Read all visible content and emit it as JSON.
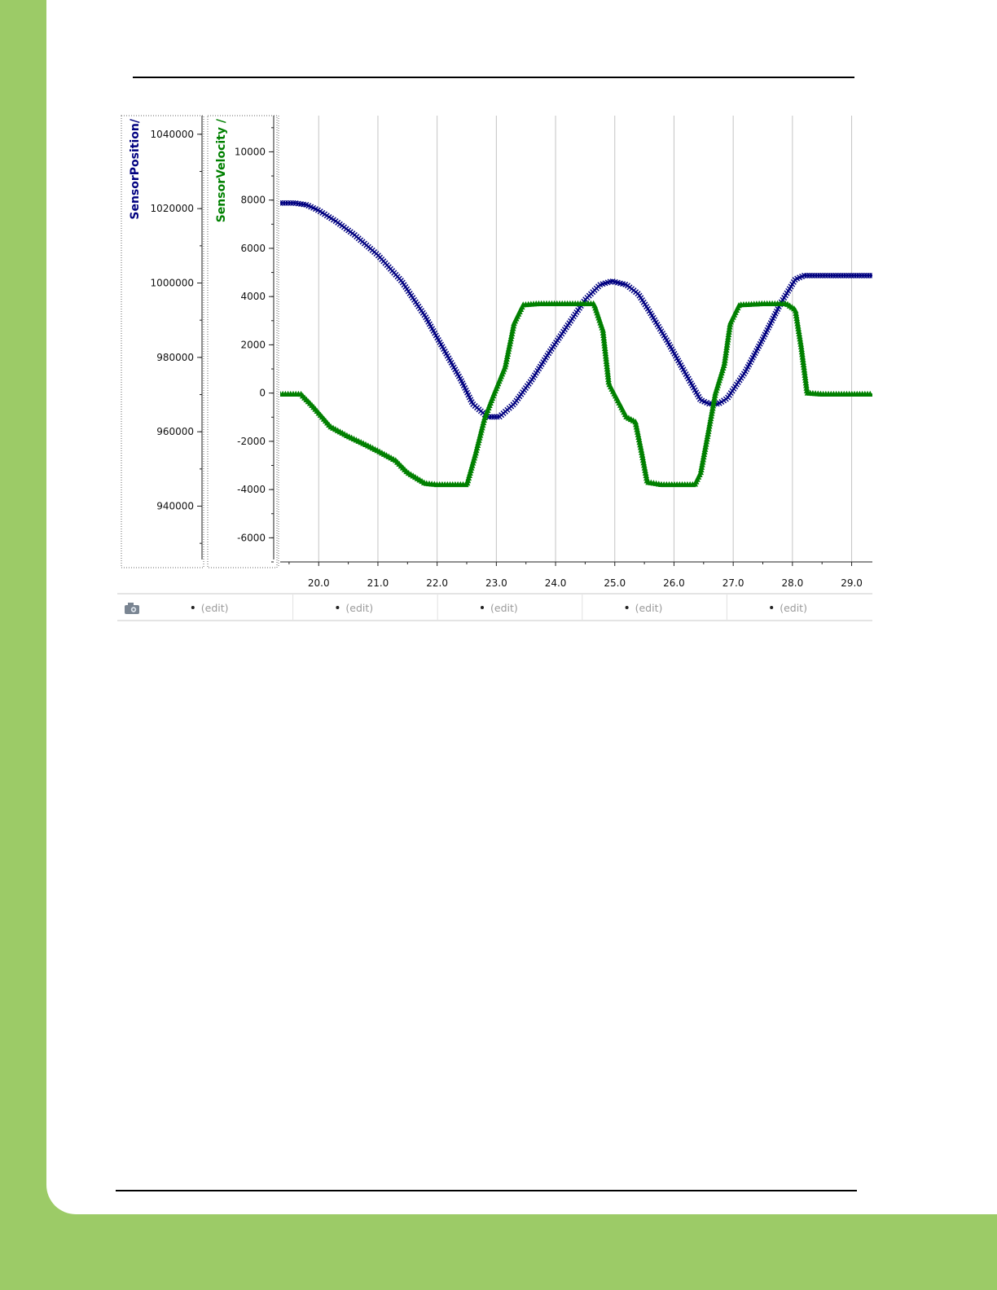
{
  "chart_data": {
    "type": "line",
    "xlim": [
      19.35,
      29.35
    ],
    "x_ticks": [
      "20.0",
      "21.0",
      "22.0",
      "23.0",
      "24.0",
      "25.0",
      "26.0",
      "27.0",
      "28.0",
      "29.0"
    ],
    "axes": [
      {
        "label": "SensorPosition/",
        "color": "#000080",
        "ylim": [
          925000,
          1045000
        ],
        "ticks": [
          "1040000",
          "1020000",
          "1000000",
          "980000",
          "960000",
          "940000"
        ]
      },
      {
        "label": "SensorVelocity /",
        "color": "#008000",
        "ylim": [
          -7000,
          11500
        ],
        "ticks": [
          "10000",
          "8000",
          "6000",
          "4000",
          "2000",
          "0",
          "-2000",
          "-4000",
          "-6000"
        ]
      }
    ],
    "series": [
      {
        "axis": 0,
        "marker": "x",
        "color": "#000080",
        "x": [
          19.35,
          19.6,
          19.8,
          20.0,
          20.3,
          20.6,
          21.0,
          21.4,
          21.8,
          22.1,
          22.4,
          22.6,
          22.85,
          23.05,
          23.3,
          23.6,
          23.9,
          24.2,
          24.5,
          24.75,
          24.95,
          25.2,
          25.4,
          25.6,
          25.9,
          26.2,
          26.45,
          26.6,
          26.75,
          26.9,
          27.2,
          27.5,
          27.8,
          28.05,
          28.2,
          28.5,
          29.35
        ],
        "y": [
          1021500,
          1021500,
          1021000,
          1019500,
          1016500,
          1013000,
          1007500,
          1000500,
          991000,
          982500,
          974000,
          967500,
          964000,
          964000,
          967500,
          974000,
          981500,
          988500,
          995500,
          999500,
          1000500,
          999500,
          997000,
          992000,
          984000,
          975500,
          968500,
          967500,
          967500,
          969000,
          976000,
          985000,
          994500,
          1001000,
          1002000,
          1002000,
          1002000
        ]
      },
      {
        "axis": 1,
        "marker": "triangle",
        "color": "#008000",
        "x": [
          19.35,
          19.7,
          19.9,
          20.2,
          20.5,
          20.8,
          21.0,
          21.3,
          21.5,
          21.8,
          22.0,
          22.3,
          22.5,
          22.65,
          22.8,
          22.95,
          23.15,
          23.3,
          23.45,
          23.7,
          24.0,
          24.35,
          24.65,
          24.8,
          24.9,
          25.05,
          25.2,
          25.35,
          25.45,
          25.55,
          25.8,
          26.1,
          26.35,
          26.45,
          26.55,
          26.7,
          26.85,
          26.95,
          27.1,
          27.5,
          27.9,
          28.05,
          28.15,
          28.25,
          28.5,
          29.35
        ],
        "y": [
          -50,
          -50,
          -550,
          -1400,
          -1800,
          -2150,
          -2400,
          -2800,
          -3300,
          -3750,
          -3800,
          -3800,
          -3800,
          -2500,
          -1050,
          -100,
          1100,
          2900,
          3650,
          3700,
          3700,
          3700,
          3700,
          2600,
          400,
          -300,
          -1000,
          -1200,
          -2400,
          -3700,
          -3800,
          -3800,
          -3800,
          -3300,
          -2000,
          0,
          1200,
          2900,
          3650,
          3700,
          3700,
          3450,
          1900,
          0,
          -50,
          -50
        ]
      }
    ],
    "annotation_bar": {
      "camera_icon": "camera-icon",
      "items": [
        "(edit)",
        "(edit)",
        "(edit)",
        "(edit)",
        "(edit)"
      ]
    },
    "grid": true
  }
}
